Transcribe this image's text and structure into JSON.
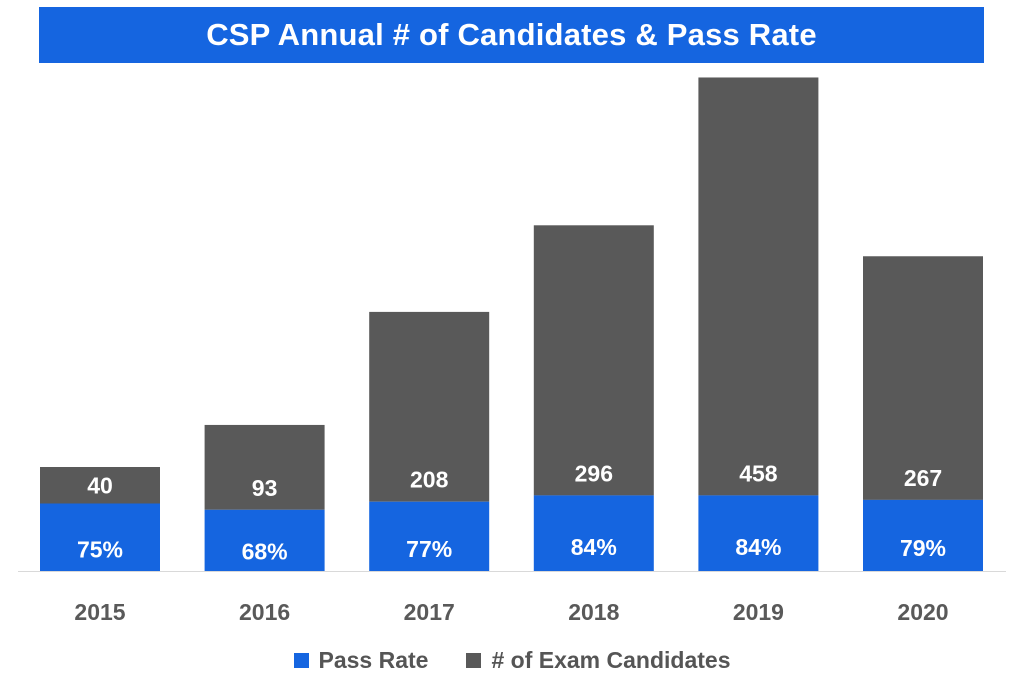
{
  "chart_data": {
    "type": "bar",
    "stacked": true,
    "title": "CSP Annual # of Candidates & Pass Rate",
    "categories": [
      "2015",
      "2016",
      "2017",
      "2018",
      "2019",
      "2020"
    ],
    "series": [
      {
        "name": "Pass Rate",
        "values": [
          75,
          68,
          77,
          84,
          84,
          79
        ],
        "labels": [
          "75%",
          "68%",
          "77%",
          "84%",
          "84%",
          "79%"
        ],
        "color": "#1565e0"
      },
      {
        "name": "# of Exam Candidates",
        "values": [
          40,
          93,
          208,
          296,
          458,
          267
        ],
        "labels": [
          "40",
          "93",
          "208",
          "296",
          "458",
          "267"
        ],
        "color": "#595959"
      }
    ],
    "legend": "bottom-center",
    "grid": false,
    "xlabel": "",
    "ylabel": ""
  },
  "colors": {
    "title_banner": "#1565e0",
    "title_text": "#ffffff",
    "axis_line": "#d9d9d9",
    "tick_label": "#595959",
    "data_label": "#ffffff"
  }
}
